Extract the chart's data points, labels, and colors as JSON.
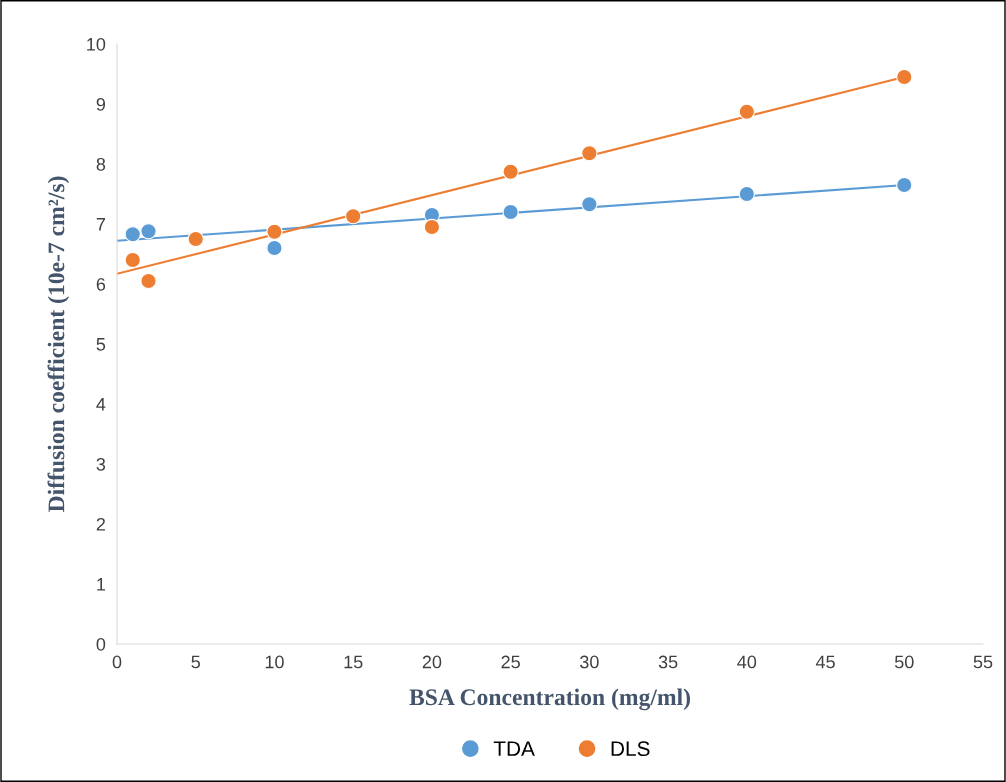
{
  "chart_data": {
    "type": "scatter",
    "xlabel": "BSA Concentration (mg/ml)",
    "ylabel": "Diffusion coefficient (10e-7 cm²/s)",
    "xlim": [
      0,
      55
    ],
    "xticks": [
      0,
      5,
      10,
      15,
      20,
      25,
      30,
      35,
      40,
      45,
      50,
      55
    ],
    "ylim": [
      0,
      10
    ],
    "yticks": [
      0,
      1,
      2,
      3,
      4,
      5,
      6,
      7,
      8,
      9,
      10
    ],
    "grid": false,
    "legend": "bottom",
    "series": [
      {
        "name": "TDA",
        "marker": "circle",
        "color": "#5b9bd5",
        "x": [
          1,
          2,
          10,
          20,
          25,
          30,
          40,
          50
        ],
        "values": [
          6.83,
          6.88,
          6.6,
          7.15,
          7.2,
          7.33,
          7.5,
          7.65
        ]
      },
      {
        "name": "DLS",
        "marker": "circle",
        "color": "#ed7d31",
        "x": [
          1,
          2,
          5,
          10,
          15,
          20,
          25,
          30,
          40,
          50
        ],
        "values": [
          6.4,
          6.05,
          6.75,
          6.87,
          7.13,
          6.95,
          7.87,
          8.18,
          8.87,
          9.45
        ]
      },
      {
        "type": "line",
        "marker": "none",
        "color": "#5b9bd5",
        "x": [
          0,
          50
        ],
        "values": [
          6.72,
          7.65
        ]
      },
      {
        "type": "line",
        "marker": "none",
        "color": "#ed7d31",
        "x": [
          0,
          50
        ],
        "values": [
          6.17,
          9.45
        ]
      }
    ]
  }
}
